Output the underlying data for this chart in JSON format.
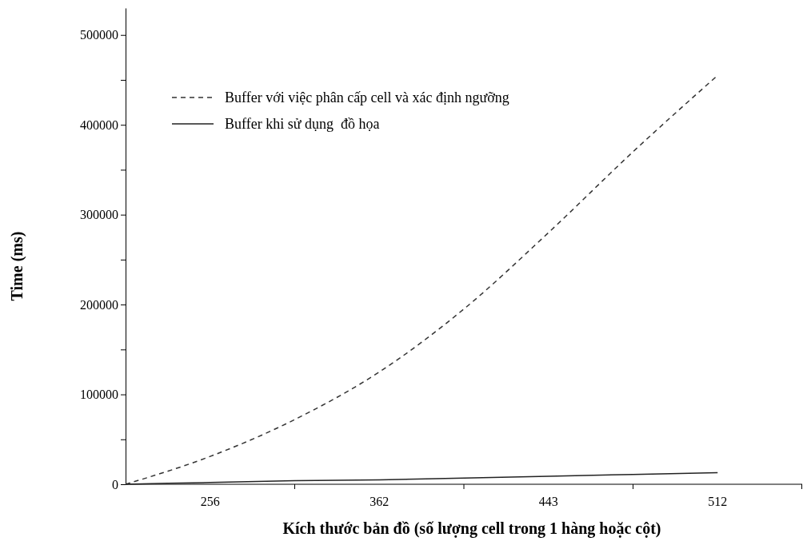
{
  "chart_data": {
    "type": "line",
    "xlabel": "Kích thước bản đồ (số lượng cell trong 1 hàng hoặc cột)",
    "ylabel": "Time (ms)",
    "categories": [
      null,
      "256",
      null,
      "362",
      null,
      "443",
      null,
      "512"
    ],
    "ylim": [
      0,
      530000
    ],
    "yticks": [
      0,
      {
        "value": 50000,
        "label": null
      },
      100000,
      {
        "value": 150000,
        "label": null
      },
      200000,
      {
        "value": 250000,
        "label": null
      },
      300000,
      {
        "value": 350000,
        "label": null
      },
      400000,
      {
        "value": 450000,
        "label": null
      },
      500000
    ],
    "grid": false,
    "legend": "top left",
    "series": [
      {
        "name": "Buffer với việc phân cấp cell và xác định ngưỡng",
        "color": "#333333",
        "line_style": "dashed",
        "values": [
          0,
          31000,
          72000,
          125000,
          195000,
          280000,
          370000,
          455000
        ]
      },
      {
        "name": "Buffer khi sử dụng  đồ họa",
        "color": "#222222",
        "line_style": "solid",
        "values": [
          0,
          2000,
          4000,
          5000,
          7000,
          9000,
          11000,
          13000
        ]
      }
    ]
  }
}
